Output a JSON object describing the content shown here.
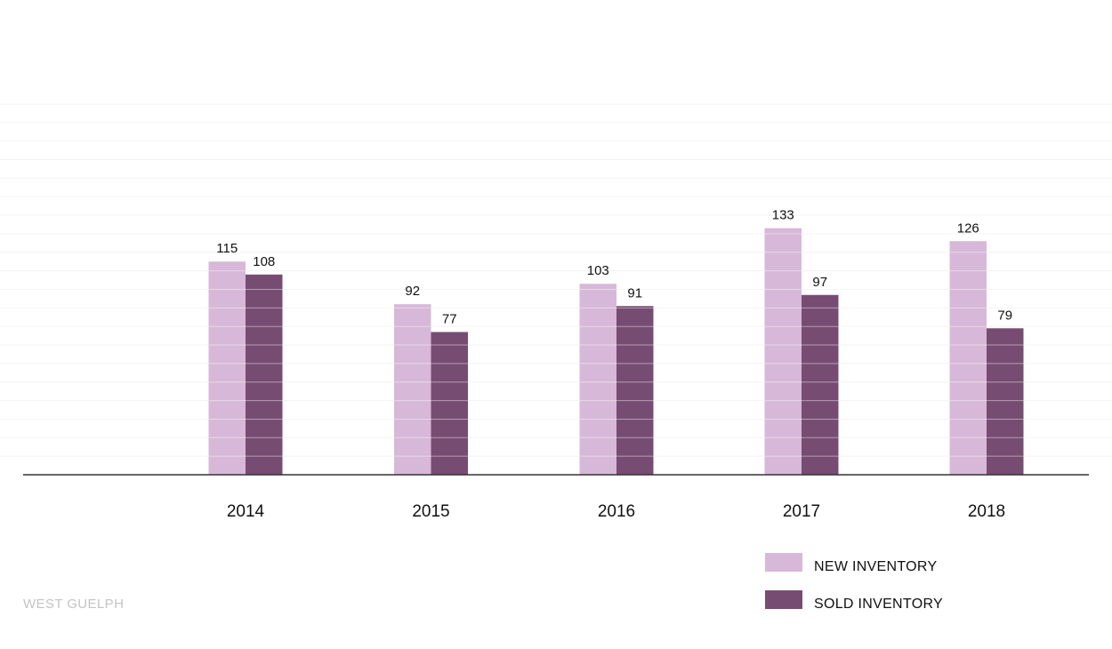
{
  "region_label": "WEST GUELPH",
  "colors": {
    "new_inventory": "#d7b8d8",
    "sold_inventory": "#774c73",
    "axis": "#333333",
    "grid": "#f3f3f3",
    "bar_grid": "#ffffff"
  },
  "chart_data": {
    "type": "bar",
    "categories": [
      "2014",
      "2015",
      "2016",
      "2017",
      "2018"
    ],
    "series": [
      {
        "name": "NEW INVENTORY",
        "values": [
          115,
          92,
          103,
          133,
          126
        ]
      },
      {
        "name": "SOLD INVENTORY",
        "values": [
          108,
          77,
          91,
          97,
          79
        ]
      }
    ],
    "ylim": [
      0,
      200
    ],
    "grid_step": 10,
    "grid": true,
    "data_labels": true,
    "legend": {
      "position": "bottom-right"
    }
  }
}
